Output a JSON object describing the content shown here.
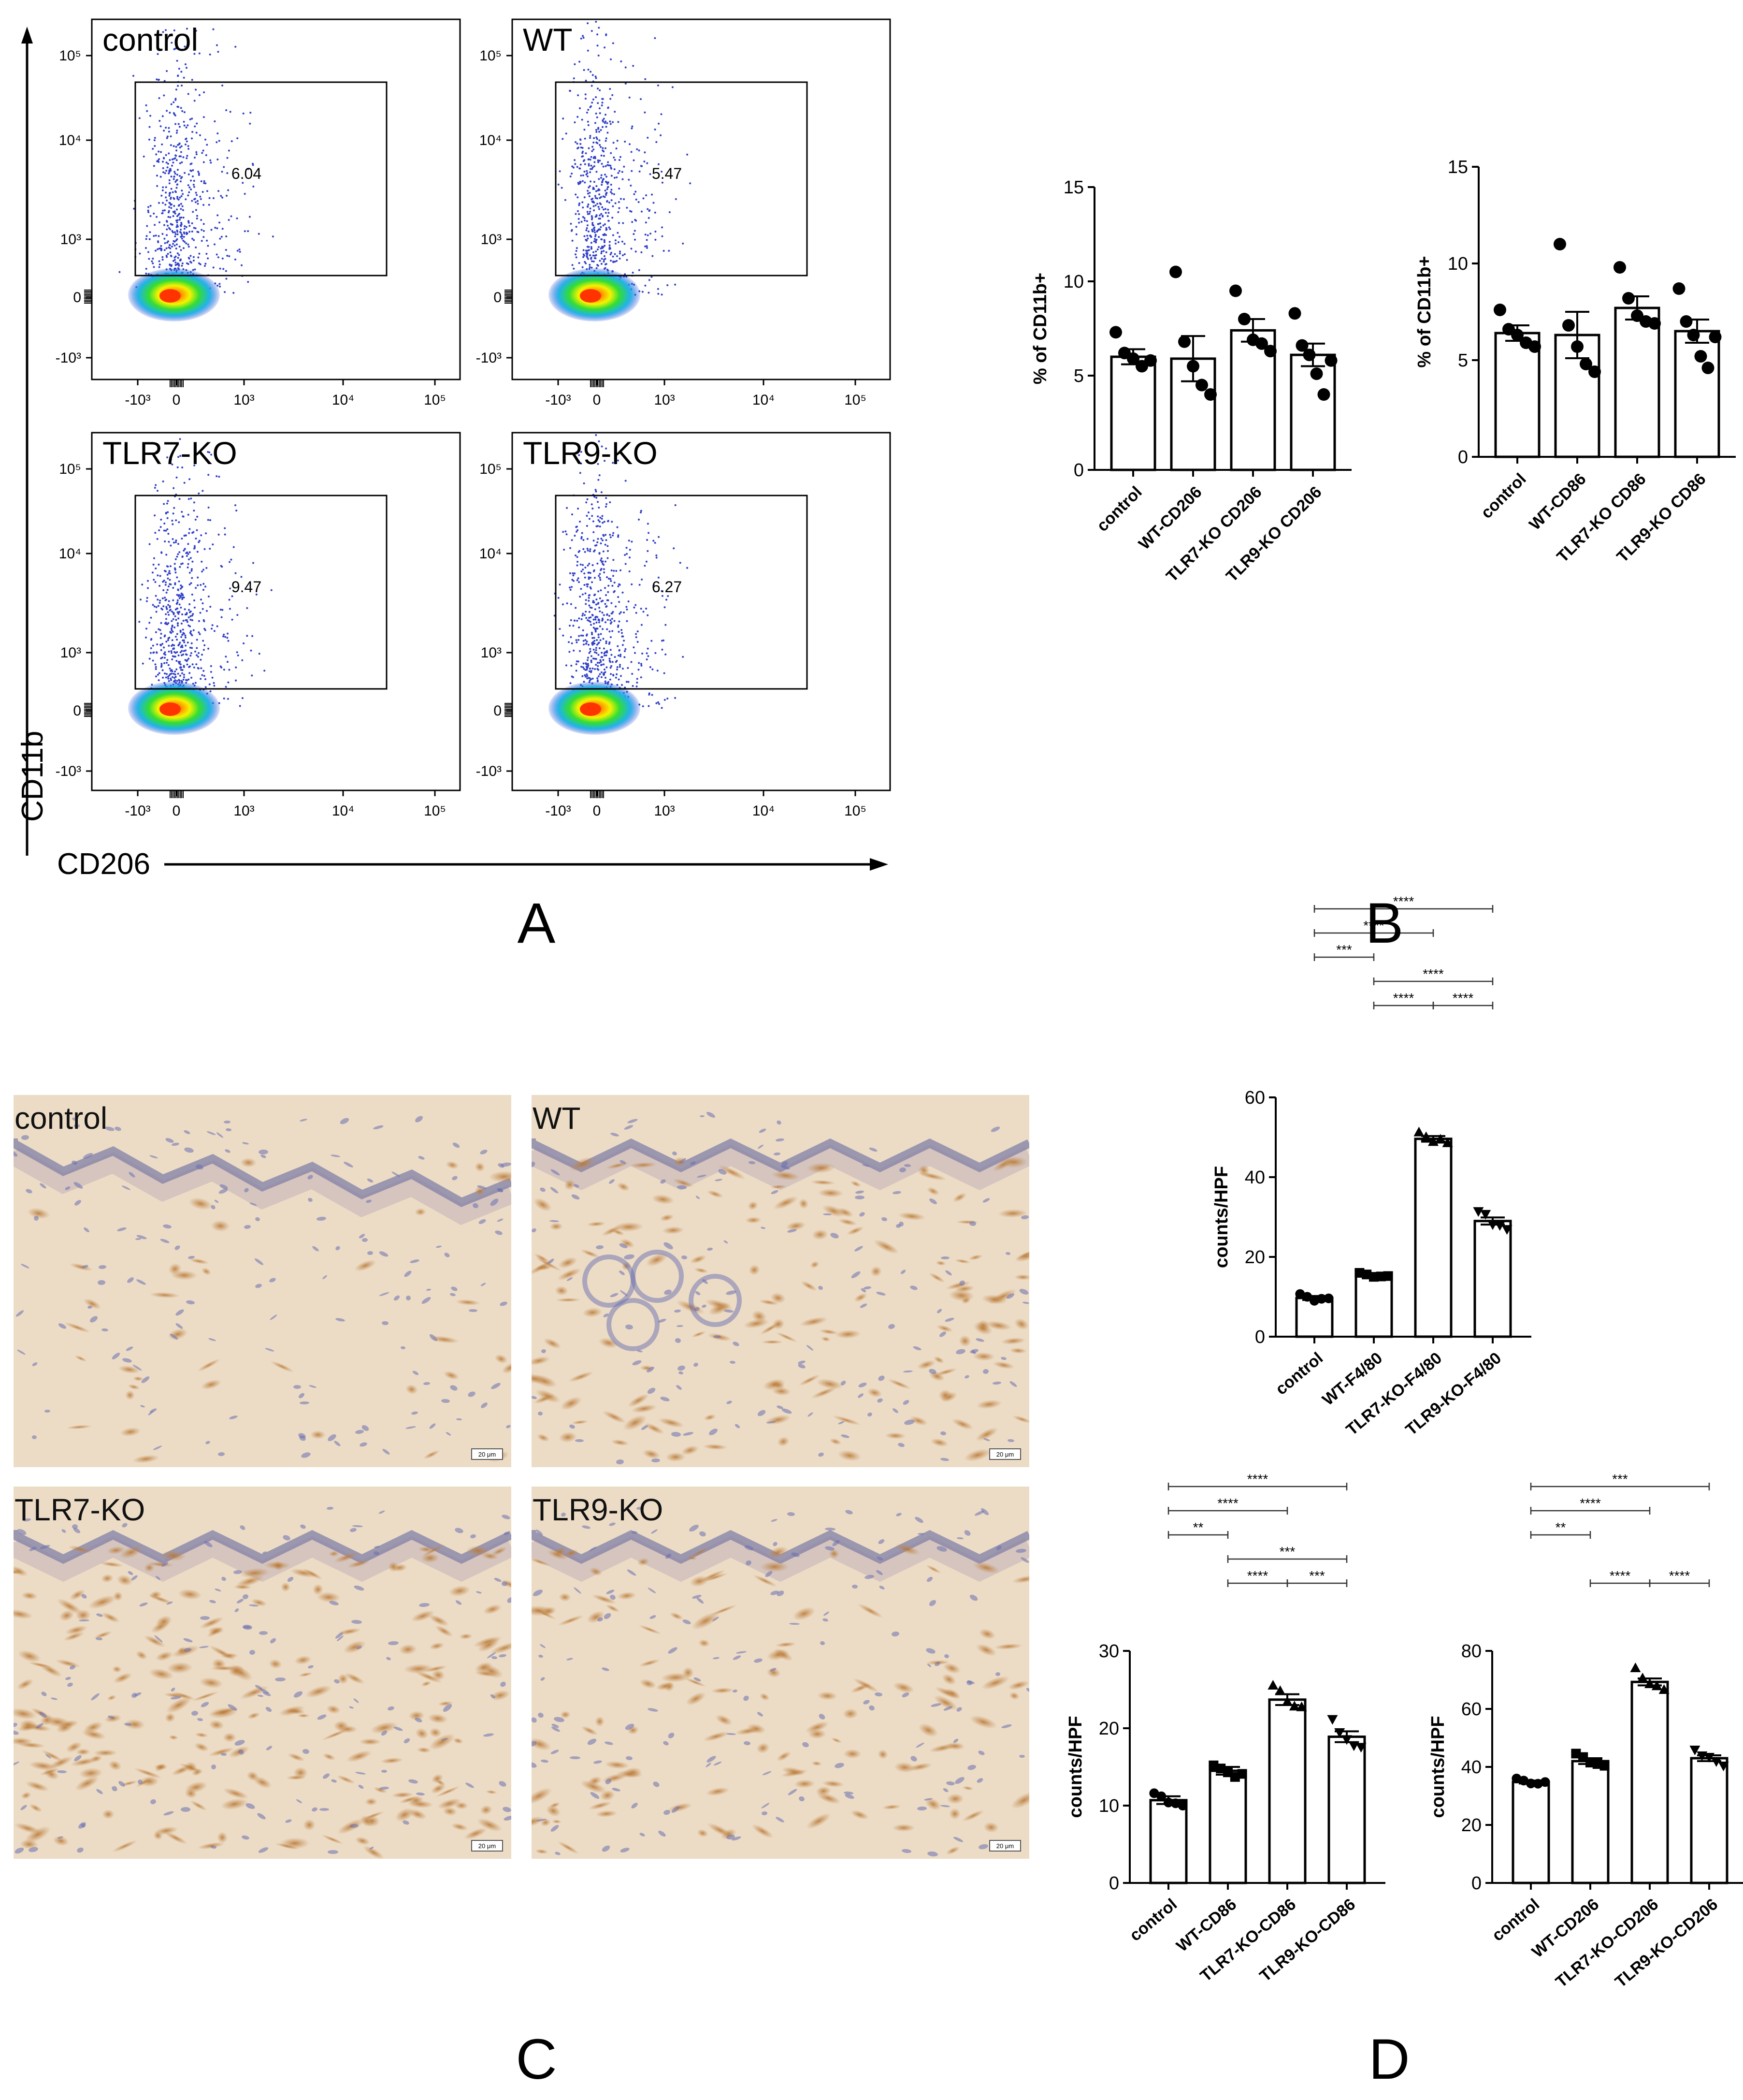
{
  "panel_letters": {
    "a": "A",
    "b": "B",
    "c": "C",
    "d": "D"
  },
  "flow": {
    "y_axis_label": "CD11b",
    "x_axis_label": "CD206",
    "y_ticks": [
      "10⁵",
      "10⁴",
      "10³",
      "0",
      "-10³"
    ],
    "x_ticks": [
      "-10³",
      "0",
      "10³",
      "10⁴",
      "10⁵"
    ],
    "plots": [
      {
        "name": "control",
        "gate_value": "6.04"
      },
      {
        "name": "WT",
        "gate_value": "5.47"
      },
      {
        "name": "TLR7-KO",
        "gate_value": "9.47"
      },
      {
        "name": "TLR9-KO",
        "gate_value": "6.27"
      }
    ]
  },
  "histology": {
    "scale_bar_label": "20 μm",
    "images": [
      "control",
      "WT",
      "TLR7-KO",
      "TLR9-KO"
    ]
  },
  "chart_data": [
    {
      "type": "bar",
      "panel": "B",
      "ylabel": "% of CD11b+",
      "ylim": [
        0,
        15
      ],
      "yticks": [
        0,
        5,
        10,
        15
      ],
      "categories": [
        "control",
        "WT-CD206",
        "TLR7-KO CD206",
        "TLR9-KO CD206"
      ],
      "values": [
        6.0,
        5.9,
        7.4,
        6.1
      ],
      "sem": [
        0.4,
        1.2,
        0.6,
        0.6
      ],
      "points": [
        [
          7.3,
          6.2,
          5.9,
          5.5,
          5.8
        ],
        [
          10.5,
          6.8,
          5.5,
          4.5,
          4.0
        ],
        [
          9.5,
          8.0,
          6.9,
          6.7,
          6.3
        ],
        [
          8.3,
          6.6,
          6.1,
          5.1,
          4.0,
          5.8
        ]
      ],
      "significance": []
    },
    {
      "type": "bar",
      "panel": "B",
      "ylabel": "% of CD11b+",
      "ylim": [
        0,
        15
      ],
      "yticks": [
        0,
        5,
        10,
        15
      ],
      "categories": [
        "control",
        "WT-CD86",
        "TLR7-KO CD86",
        "TLR9-KO CD86"
      ],
      "values": [
        6.4,
        6.3,
        7.7,
        6.5
      ],
      "sem": [
        0.4,
        1.2,
        0.6,
        0.6
      ],
      "points": [
        [
          7.6,
          6.6,
          6.3,
          5.9,
          5.7
        ],
        [
          11.0,
          6.8,
          5.7,
          4.8,
          4.4
        ],
        [
          9.8,
          8.2,
          7.3,
          7.0,
          6.9
        ],
        [
          8.7,
          7.0,
          6.3,
          5.2,
          4.6,
          6.2
        ]
      ],
      "significance": []
    },
    {
      "type": "bar",
      "panel": "D",
      "ylabel": "counts/HPF",
      "ylim": [
        0,
        60
      ],
      "yticks": [
        0,
        20,
        40,
        60
      ],
      "categories": [
        "control",
        "WT-F4/80",
        "TLR7-KO-F4/80",
        "TLR9-KO-F4/80"
      ],
      "values": [
        9.7,
        15.4,
        49.6,
        29.0
      ],
      "sem": [
        0.5,
        0.5,
        0.7,
        0.9
      ],
      "points": [
        [
          10.7,
          10.0,
          9.0,
          9.5,
          9.6
        ],
        [
          16.0,
          15.6,
          15.0,
          15.1,
          15.2
        ],
        [
          51.2,
          50.0,
          48.8,
          49.4,
          48.5
        ],
        [
          31.5,
          30.8,
          28.2,
          28.0,
          27.0
        ]
      ],
      "markers": [
        "circle",
        "square",
        "triangle-up",
        "triangle-down"
      ],
      "significance": [
        {
          "from": 0,
          "to": 3,
          "label": "****"
        },
        {
          "from": 0,
          "to": 2,
          "label": "****"
        },
        {
          "from": 0,
          "to": 1,
          "label": "***"
        },
        {
          "from": 1,
          "to": 3,
          "label": "****"
        },
        {
          "from": 1,
          "to": 2,
          "label": "****"
        },
        {
          "from": 2,
          "to": 3,
          "label": "****"
        }
      ]
    },
    {
      "type": "bar",
      "panel": "D",
      "ylabel": "counts/HPF",
      "ylim": [
        0,
        30
      ],
      "yticks": [
        0,
        10,
        20,
        30
      ],
      "categories": [
        "control",
        "WT-CD86",
        "TLR7-KO-CD86",
        "TLR9-KO-CD86"
      ],
      "values": [
        10.7,
        14.5,
        23.7,
        18.9
      ],
      "sem": [
        0.5,
        0.5,
        0.7,
        0.7
      ],
      "points": [
        [
          11.6,
          11.2,
          10.4,
          10.3,
          10.0
        ],
        [
          15.2,
          14.8,
          14.3,
          13.7,
          14.1
        ],
        [
          25.5,
          24.8,
          23.4,
          22.8,
          22.7
        ],
        [
          21.2,
          19.5,
          18.6,
          17.8,
          17.6
        ]
      ],
      "markers": [
        "circle",
        "square",
        "triangle-up",
        "triangle-down"
      ],
      "significance": [
        {
          "from": 0,
          "to": 3,
          "label": "****"
        },
        {
          "from": 0,
          "to": 2,
          "label": "****"
        },
        {
          "from": 0,
          "to": 1,
          "label": "**"
        },
        {
          "from": 1,
          "to": 3,
          "label": "***"
        },
        {
          "from": 1,
          "to": 2,
          "label": "****"
        },
        {
          "from": 2,
          "to": 3,
          "label": "***"
        }
      ]
    },
    {
      "type": "bar",
      "panel": "D",
      "ylabel": "counts/HPF",
      "ylim": [
        0,
        80
      ],
      "yticks": [
        0,
        20,
        40,
        60,
        80
      ],
      "categories": [
        "control",
        "WT-CD206",
        "TLR7-KO-CD206",
        "TLR9-KO-CD206"
      ],
      "values": [
        34.8,
        42.0,
        69.3,
        43.0
      ],
      "sem": [
        0.5,
        1.0,
        1.2,
        1.0
      ],
      "points": [
        [
          36.0,
          35.3,
          34.3,
          34.2,
          34.8
        ],
        [
          44.6,
          43.4,
          41.5,
          41.0,
          40.4
        ],
        [
          74.0,
          70.5,
          68.5,
          67.8,
          66.5
        ],
        [
          46.0,
          44.0,
          43.5,
          42.0,
          40.5
        ]
      ],
      "markers": [
        "circle",
        "square",
        "triangle-up",
        "triangle-down"
      ],
      "significance": [
        {
          "from": 0,
          "to": 3,
          "label": "***"
        },
        {
          "from": 0,
          "to": 2,
          "label": "****"
        },
        {
          "from": 0,
          "to": 1,
          "label": "**"
        },
        {
          "from": 1,
          "to": 2,
          "label": "****"
        },
        {
          "from": 2,
          "to": 3,
          "label": "****"
        }
      ]
    }
  ]
}
